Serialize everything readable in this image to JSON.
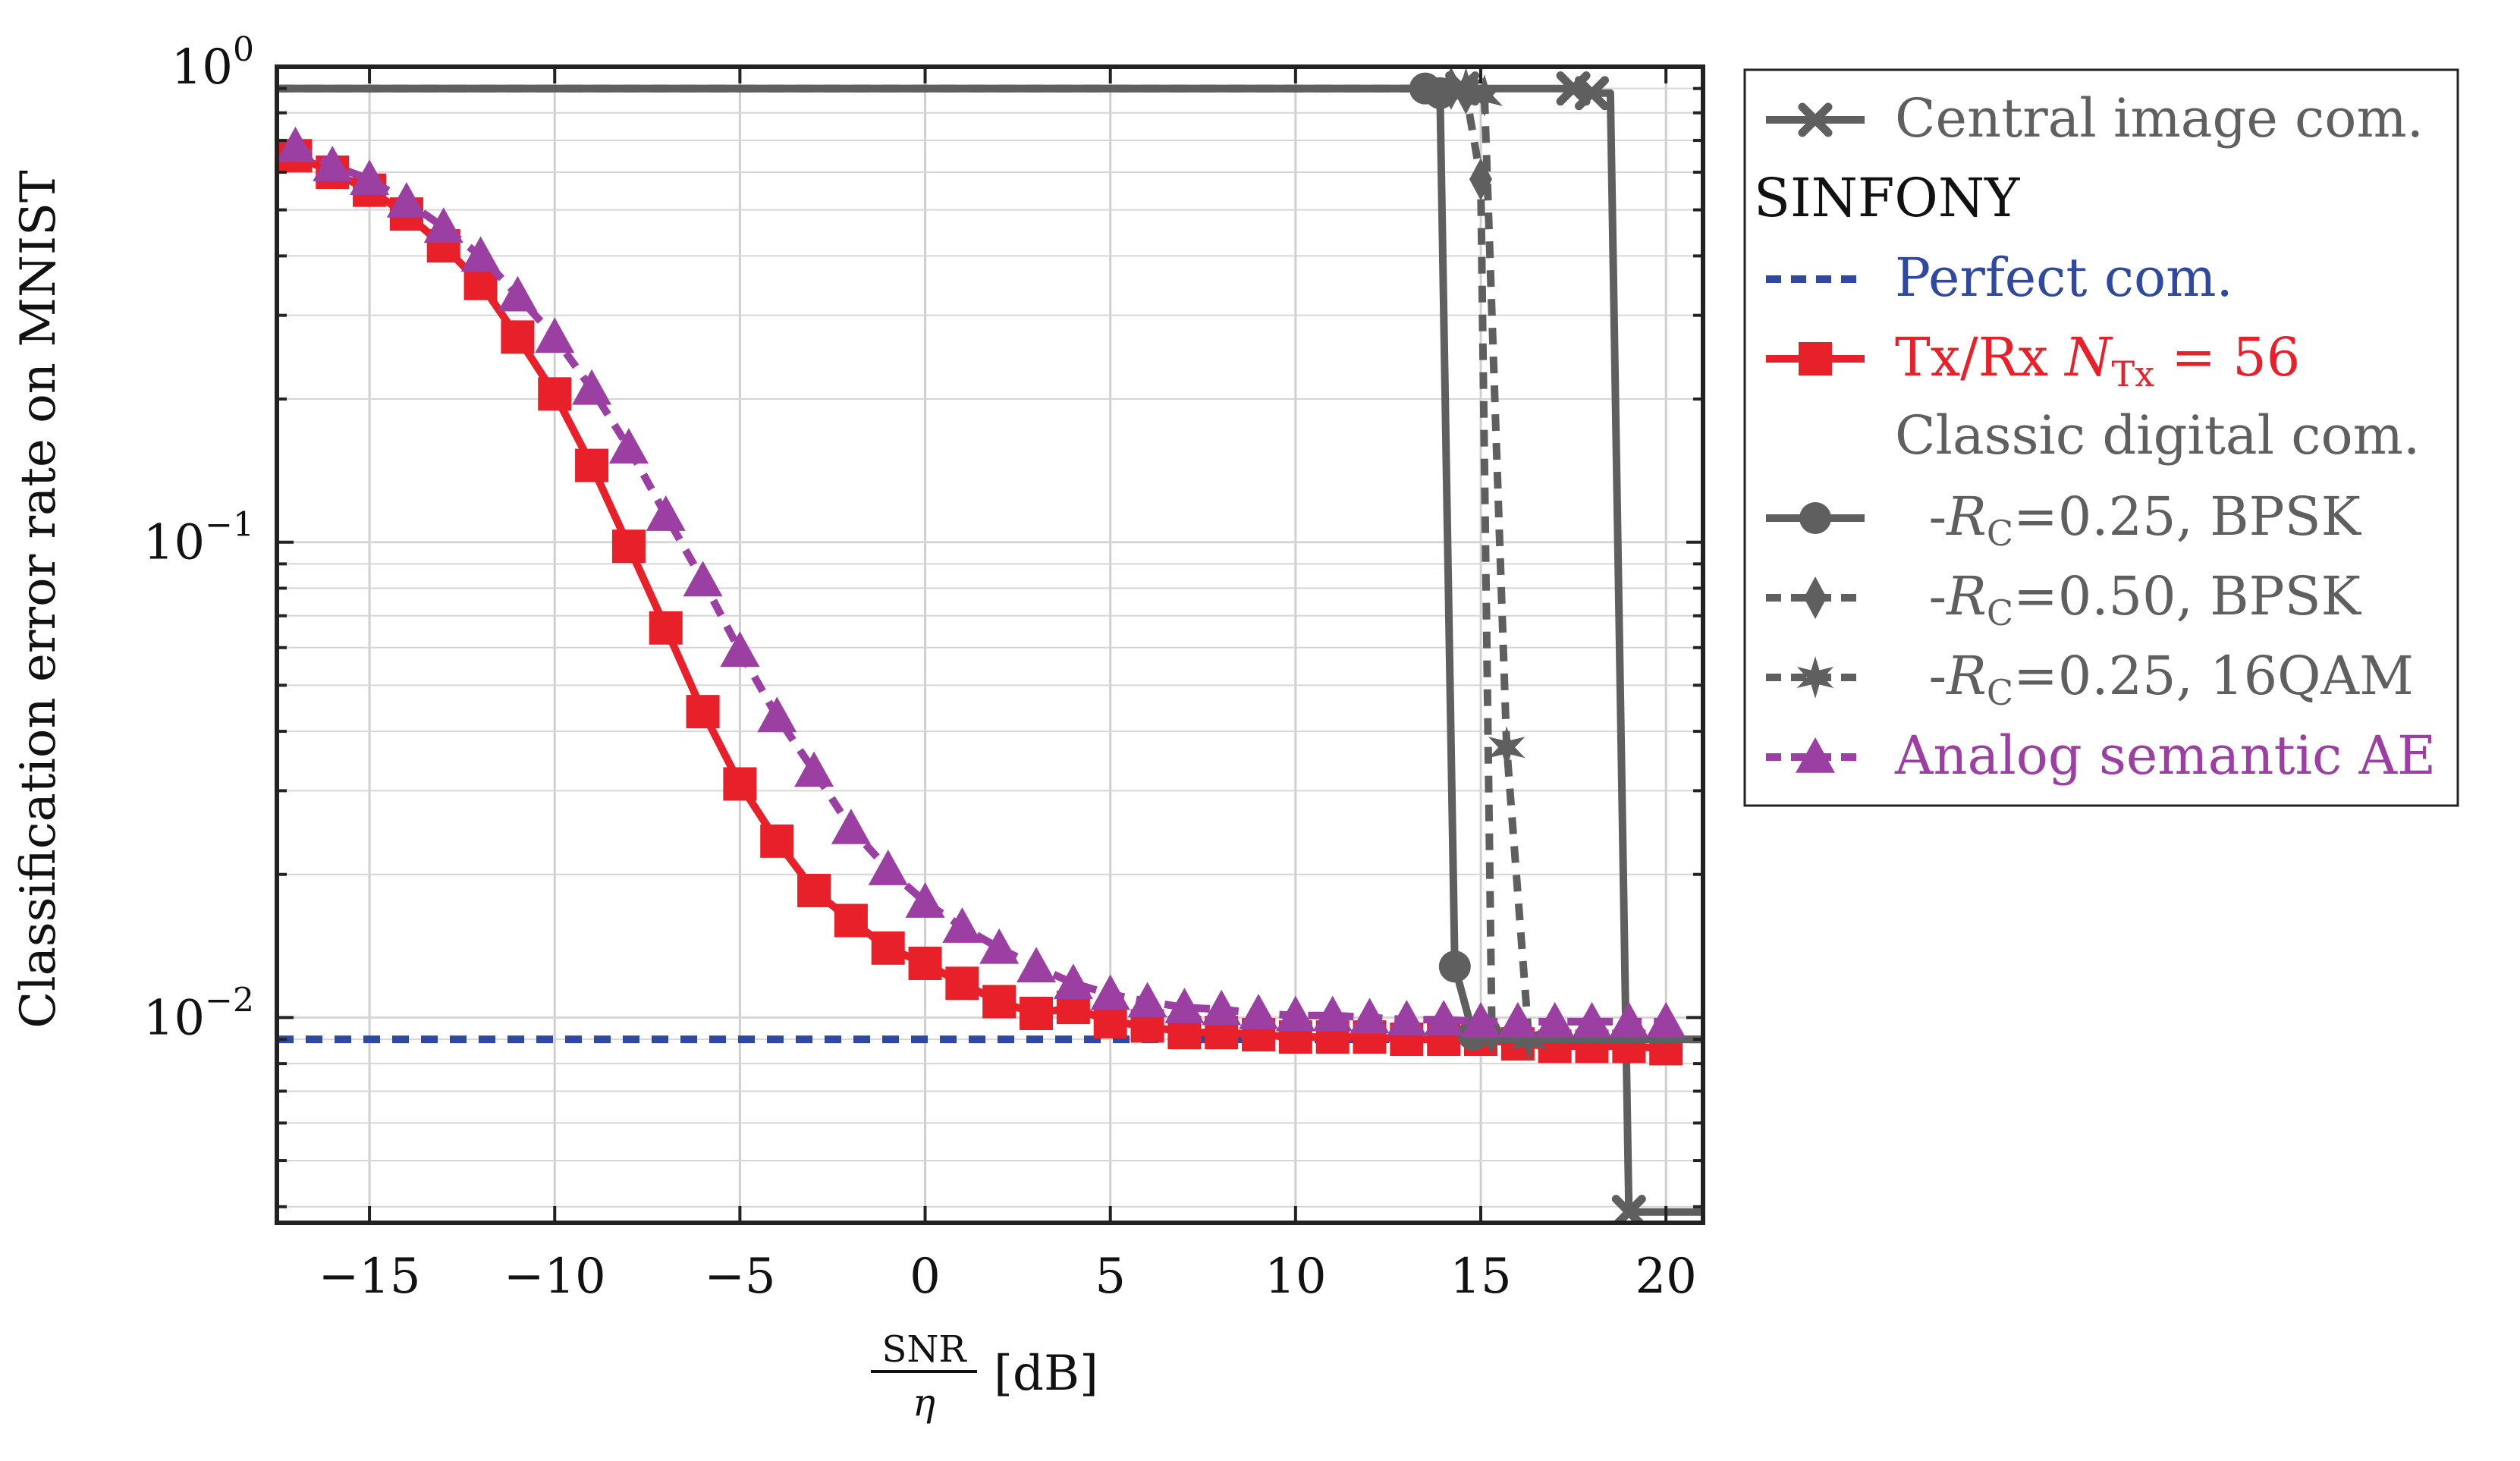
{
  "chart_data": {
    "type": "line",
    "title": "",
    "xlabel_fraction_num": "SNR",
    "xlabel_fraction_den": "η",
    "xlabel_unit": "[dB]",
    "ylabel": "Classification error rate on MNIST",
    "xlim": [
      -17.5,
      21
    ],
    "ylim": [
      0.0037,
      1.0
    ],
    "yscale": "log",
    "grid": true,
    "x_ticks": [
      -15,
      -10,
      -5,
      0,
      5,
      10,
      15,
      20
    ],
    "x_tick_labels": [
      "−15",
      "−10",
      "−5",
      "0",
      "5",
      "10",
      "15",
      "20"
    ],
    "y_ticks": [
      {
        "value": 1.0,
        "base": "10",
        "exp": "0"
      },
      {
        "value": 0.1,
        "base": "10",
        "exp": "−1"
      },
      {
        "value": 0.01,
        "base": "10",
        "exp": "−2"
      }
    ],
    "legend": {
      "position": "outside-right",
      "header_sinfony": "SINFONY",
      "header_classic": "Classic digital com.",
      "entries": [
        {
          "id": "central",
          "label": "Central image com."
        },
        {
          "id": "perfect",
          "label": "Perfect com."
        },
        {
          "id": "txrx",
          "label_prefix": "Tx/Rx ",
          "label_var": "N",
          "label_sub": "Tx",
          "label_suffix": " = 56"
        },
        {
          "id": "rc025bpsk",
          "label_prefix": "  -",
          "label_var": "R",
          "label_sub": "C",
          "label_suffix": "=0.25, BPSK"
        },
        {
          "id": "rc050bpsk",
          "label_prefix": "  -",
          "label_var": "R",
          "label_sub": "C",
          "label_suffix": "=0.50, BPSK"
        },
        {
          "id": "rc025qam",
          "label_prefix": "  -",
          "label_var": "R",
          "label_sub": "C",
          "label_suffix": "=0.25, 16QAM"
        },
        {
          "id": "analog",
          "label": "Analog semantic AE"
        }
      ]
    },
    "series": [
      {
        "id": "central",
        "name": "Central image com.",
        "color": "#5f5f5f",
        "dash": "solid",
        "marker": "x",
        "x": [
          -17.5,
          14.0,
          14.5,
          17.5,
          18.0,
          18.5,
          19.0,
          20.0,
          21.0
        ],
        "y": [
          0.9,
          0.9,
          0.9,
          0.9,
          0.88,
          0.88,
          0.0039,
          0.0039,
          0.0039
        ],
        "marker_x": [
          14.5,
          17.5,
          18.0,
          19.0
        ]
      },
      {
        "id": "perfect",
        "name": "Perfect com.",
        "color": "#2f49a0",
        "dash": "dashed",
        "marker": "none",
        "x": [
          -17.5,
          21.0
        ],
        "y": [
          0.009,
          0.009
        ]
      },
      {
        "id": "txrx",
        "name": "Tx/Rx N_Tx = 56",
        "color": "#e8202a",
        "dash": "solid",
        "marker": "square",
        "x": [
          -17,
          -16,
          -15,
          -14,
          -13,
          -12,
          -11,
          -10,
          -9,
          -8,
          -7,
          -6,
          -5,
          -4,
          -3,
          -2,
          -1,
          0,
          1,
          2,
          3,
          4,
          5,
          6,
          7,
          8,
          9,
          10,
          11,
          12,
          13,
          14,
          15,
          16,
          17,
          18,
          19,
          20
        ],
        "y": [
          0.65,
          0.6,
          0.55,
          0.49,
          0.42,
          0.35,
          0.27,
          0.205,
          0.145,
          0.098,
          0.066,
          0.044,
          0.031,
          0.0235,
          0.0185,
          0.016,
          0.014,
          0.013,
          0.0118,
          0.0108,
          0.0102,
          0.0105,
          0.0098,
          0.0096,
          0.0093,
          0.0093,
          0.0092,
          0.0091,
          0.0091,
          0.0091,
          0.009,
          0.009,
          0.009,
          0.0088,
          0.0087,
          0.0087,
          0.0087,
          0.0086
        ]
      },
      {
        "id": "rc025bpsk",
        "name": "R_C=0.25, BPSK",
        "color": "#5f5f5f",
        "dash": "solid",
        "marker": "circle",
        "x": [
          -17.5,
          13.5,
          13.9,
          14.3,
          14.8,
          15.5,
          21.0
        ],
        "y": [
          0.9,
          0.9,
          0.88,
          0.0128,
          0.0092,
          0.009,
          0.009
        ],
        "marker_x": [
          13.5,
          13.9,
          14.3,
          14.8
        ]
      },
      {
        "id": "rc050bpsk",
        "name": "R_C=0.50, BPSK",
        "color": "#5f5f5f",
        "dash": "dashed",
        "marker": "diamond",
        "x": [
          -17.5,
          14.2,
          14.6,
          15.0,
          15.3,
          15.8,
          21.0
        ],
        "y": [
          0.9,
          0.9,
          0.88,
          0.58,
          0.0093,
          0.009,
          0.009
        ],
        "marker_x": [
          14.2,
          14.6,
          15.0,
          15.3
        ]
      },
      {
        "id": "rc025qam",
        "name": "R_C=0.25, 16QAM",
        "color": "#5f5f5f",
        "dash": "dashed",
        "marker": "star",
        "x": [
          -17.5,
          14.6,
          15.1,
          15.7,
          16.3,
          17.0,
          21.0
        ],
        "y": [
          0.9,
          0.9,
          0.87,
          0.037,
          0.009,
          0.009,
          0.009
        ],
        "marker_x": [
          14.6,
          15.1,
          15.7,
          16.3
        ]
      },
      {
        "id": "analog",
        "name": "Analog semantic AE",
        "color": "#9b3fa3",
        "dash": "dashed",
        "marker": "triangle",
        "x": [
          -17,
          -16,
          -15,
          -14,
          -13,
          -12,
          -11,
          -10,
          -9,
          -8,
          -7,
          -6,
          -5,
          -4,
          -3,
          -2,
          -1,
          0,
          1,
          2,
          3,
          4,
          5,
          6,
          7,
          8,
          9,
          10,
          11,
          12,
          13,
          14,
          15,
          16,
          17,
          18,
          19,
          20
        ],
        "y": [
          0.68,
          0.62,
          0.58,
          0.52,
          0.46,
          0.4,
          0.33,
          0.27,
          0.21,
          0.158,
          0.114,
          0.083,
          0.059,
          0.043,
          0.033,
          0.025,
          0.0205,
          0.0175,
          0.0155,
          0.014,
          0.0128,
          0.0118,
          0.0112,
          0.0108,
          0.0105,
          0.0104,
          0.0102,
          0.0101,
          0.0101,
          0.01,
          0.0099,
          0.0099,
          0.0098,
          0.0098,
          0.0098,
          0.0098,
          0.0098,
          0.0098
        ]
      }
    ]
  }
}
